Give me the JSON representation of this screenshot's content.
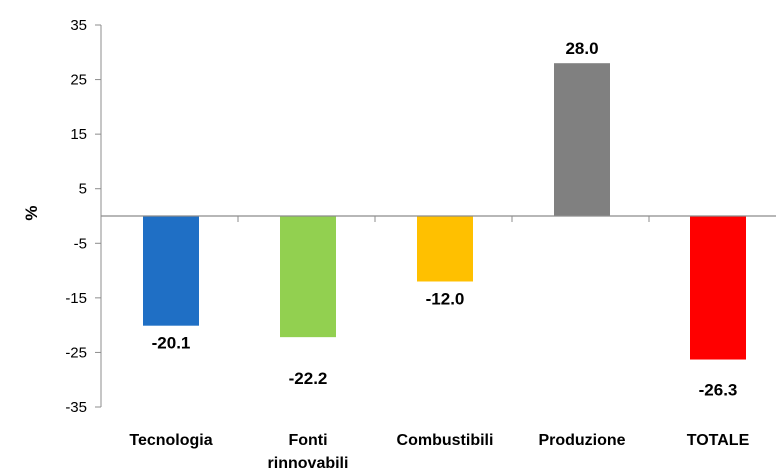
{
  "chart_data": {
    "type": "bar",
    "categories": [
      [
        "Tecnologia"
      ],
      [
        "Fonti",
        "rinnovabili"
      ],
      [
        "Combustibili"
      ],
      [
        "Produzione"
      ],
      [
        "TOTALE"
      ]
    ],
    "values": [
      -20.1,
      -22.2,
      -12.0,
      28.0,
      -26.3
    ],
    "value_labels": [
      "-20.1",
      "-22.2",
      "-12.0",
      "28.0",
      "-26.3"
    ],
    "colors": [
      "#1f6fc5",
      "#92d050",
      "#ffc000",
      "#808080",
      "#ff0000"
    ],
    "ylabel": "%",
    "ylim": [
      -35,
      35
    ],
    "yticks": [
      35,
      25,
      15,
      5,
      -5,
      -15,
      -25,
      -35
    ],
    "grid": false,
    "legend": "none"
  }
}
